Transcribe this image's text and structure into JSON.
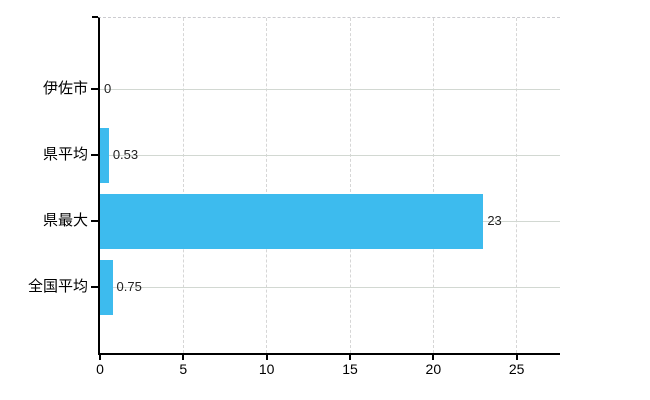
{
  "chart_data": {
    "type": "bar",
    "orientation": "horizontal",
    "title": "",
    "xlabel": "",
    "ylabel": "",
    "categories": [
      "伊佐市",
      "県平均",
      "県最大",
      "全国平均"
    ],
    "values": [
      0,
      0.53,
      23,
      0.75
    ],
    "value_labels": [
      "0",
      "0.53",
      "23",
      "0.75"
    ],
    "x_axis": {
      "min": 0,
      "max": 27.6,
      "ticks": [
        0,
        5,
        10,
        15,
        20,
        25
      ],
      "tick_labels": [
        "0",
        "5",
        "10",
        "15",
        "20",
        "25"
      ]
    },
    "legend": null,
    "grid": true,
    "colors": {
      "bar": "#3dbbee",
      "axis": "#000000",
      "hgridline": "#d2d8d2",
      "vgridline": "#d6d6d6",
      "text": "#000000",
      "background": "#ffffff"
    }
  }
}
